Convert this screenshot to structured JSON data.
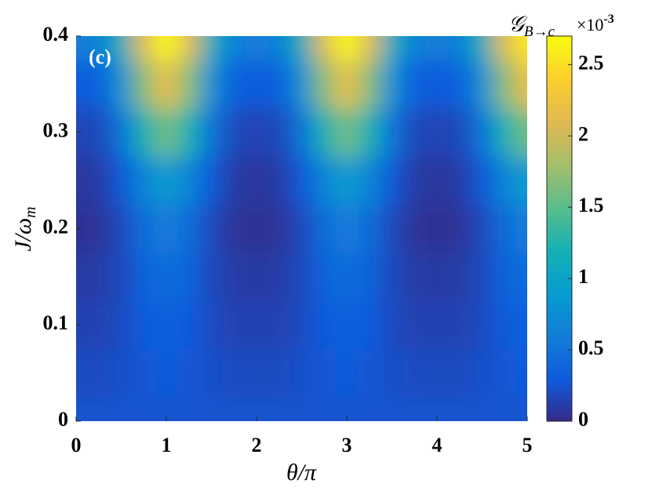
{
  "chart_data": {
    "type": "heatmap",
    "panel_label": "(c)",
    "xlabel": "θ/π",
    "ylabel": "J/ω",
    "ylabel_sub": "m",
    "colorbar_label": "𝒢",
    "colorbar_label_sub": "B→c",
    "colorbar_multiplier": "×10",
    "colorbar_multiplier_power": "-3",
    "colormap": "parula",
    "x": [
      0,
      0.25,
      0.5,
      0.75,
      1,
      1.25,
      1.5,
      1.75,
      2,
      2.25,
      2.5,
      2.75,
      3,
      3.25,
      3.5,
      3.75,
      4,
      4.25,
      4.5,
      4.75,
      5
    ],
    "y": [
      0,
      0.05,
      0.1,
      0.15,
      0.2,
      0.25,
      0.3,
      0.35,
      0.4
    ],
    "z": [
      [
        0.25,
        0.25,
        0.25,
        0.25,
        0.25,
        0.25,
        0.25,
        0.25,
        0.25,
        0.25,
        0.25,
        0.25,
        0.25,
        0.25,
        0.25,
        0.25,
        0.25,
        0.25,
        0.25,
        0.25,
        0.25
      ],
      [
        0.2,
        0.2,
        0.23,
        0.27,
        0.3,
        0.27,
        0.23,
        0.2,
        0.2,
        0.2,
        0.23,
        0.27,
        0.3,
        0.27,
        0.23,
        0.2,
        0.2,
        0.2,
        0.23,
        0.27,
        0.3
      ],
      [
        0.15,
        0.15,
        0.2,
        0.3,
        0.35,
        0.3,
        0.2,
        0.15,
        0.15,
        0.15,
        0.2,
        0.3,
        0.35,
        0.3,
        0.2,
        0.15,
        0.15,
        0.15,
        0.2,
        0.3,
        0.35
      ],
      [
        0.1,
        0.11,
        0.19,
        0.36,
        0.45,
        0.36,
        0.19,
        0.11,
        0.1,
        0.11,
        0.19,
        0.36,
        0.45,
        0.36,
        0.19,
        0.11,
        0.1,
        0.11,
        0.19,
        0.36,
        0.45
      ],
      [
        0.05,
        0.06,
        0.19,
        0.45,
        0.6,
        0.45,
        0.19,
        0.06,
        0.05,
        0.06,
        0.19,
        0.45,
        0.6,
        0.45,
        0.19,
        0.06,
        0.05,
        0.06,
        0.19,
        0.45,
        0.6
      ],
      [
        0.08,
        0.1,
        0.29,
        0.68,
        0.9,
        0.68,
        0.29,
        0.1,
        0.08,
        0.1,
        0.29,
        0.68,
        0.9,
        0.68,
        0.29,
        0.1,
        0.08,
        0.1,
        0.29,
        0.68,
        0.9
      ],
      [
        0.15,
        0.18,
        0.51,
        1.21,
        1.6,
        1.21,
        0.51,
        0.18,
        0.15,
        0.18,
        0.51,
        1.21,
        1.6,
        1.21,
        0.51,
        0.18,
        0.15,
        0.18,
        0.51,
        1.21,
        1.6
      ],
      [
        0.3,
        0.34,
        0.78,
        1.69,
        2.2,
        1.69,
        0.78,
        0.34,
        0.3,
        0.34,
        0.78,
        1.69,
        2.2,
        1.69,
        0.78,
        0.34,
        0.3,
        0.34,
        0.78,
        1.69,
        2.2
      ],
      [
        0.6,
        0.64,
        1.13,
        2.13,
        2.7,
        2.13,
        1.13,
        0.64,
        0.6,
        0.64,
        1.13,
        2.13,
        2.7,
        2.13,
        1.13,
        0.64,
        0.6,
        0.64,
        1.13,
        2.13,
        2.6
      ]
    ],
    "xlim": [
      0,
      5
    ],
    "ylim": [
      0,
      0.4
    ],
    "clim": [
      0,
      2.7
    ],
    "xticks": [
      0,
      1,
      2,
      3,
      4,
      5
    ],
    "yticks": [
      0,
      0.1,
      0.2,
      0.3,
      0.4
    ],
    "cticks": [
      0,
      0.5,
      1,
      1.5,
      2,
      2.5
    ]
  }
}
